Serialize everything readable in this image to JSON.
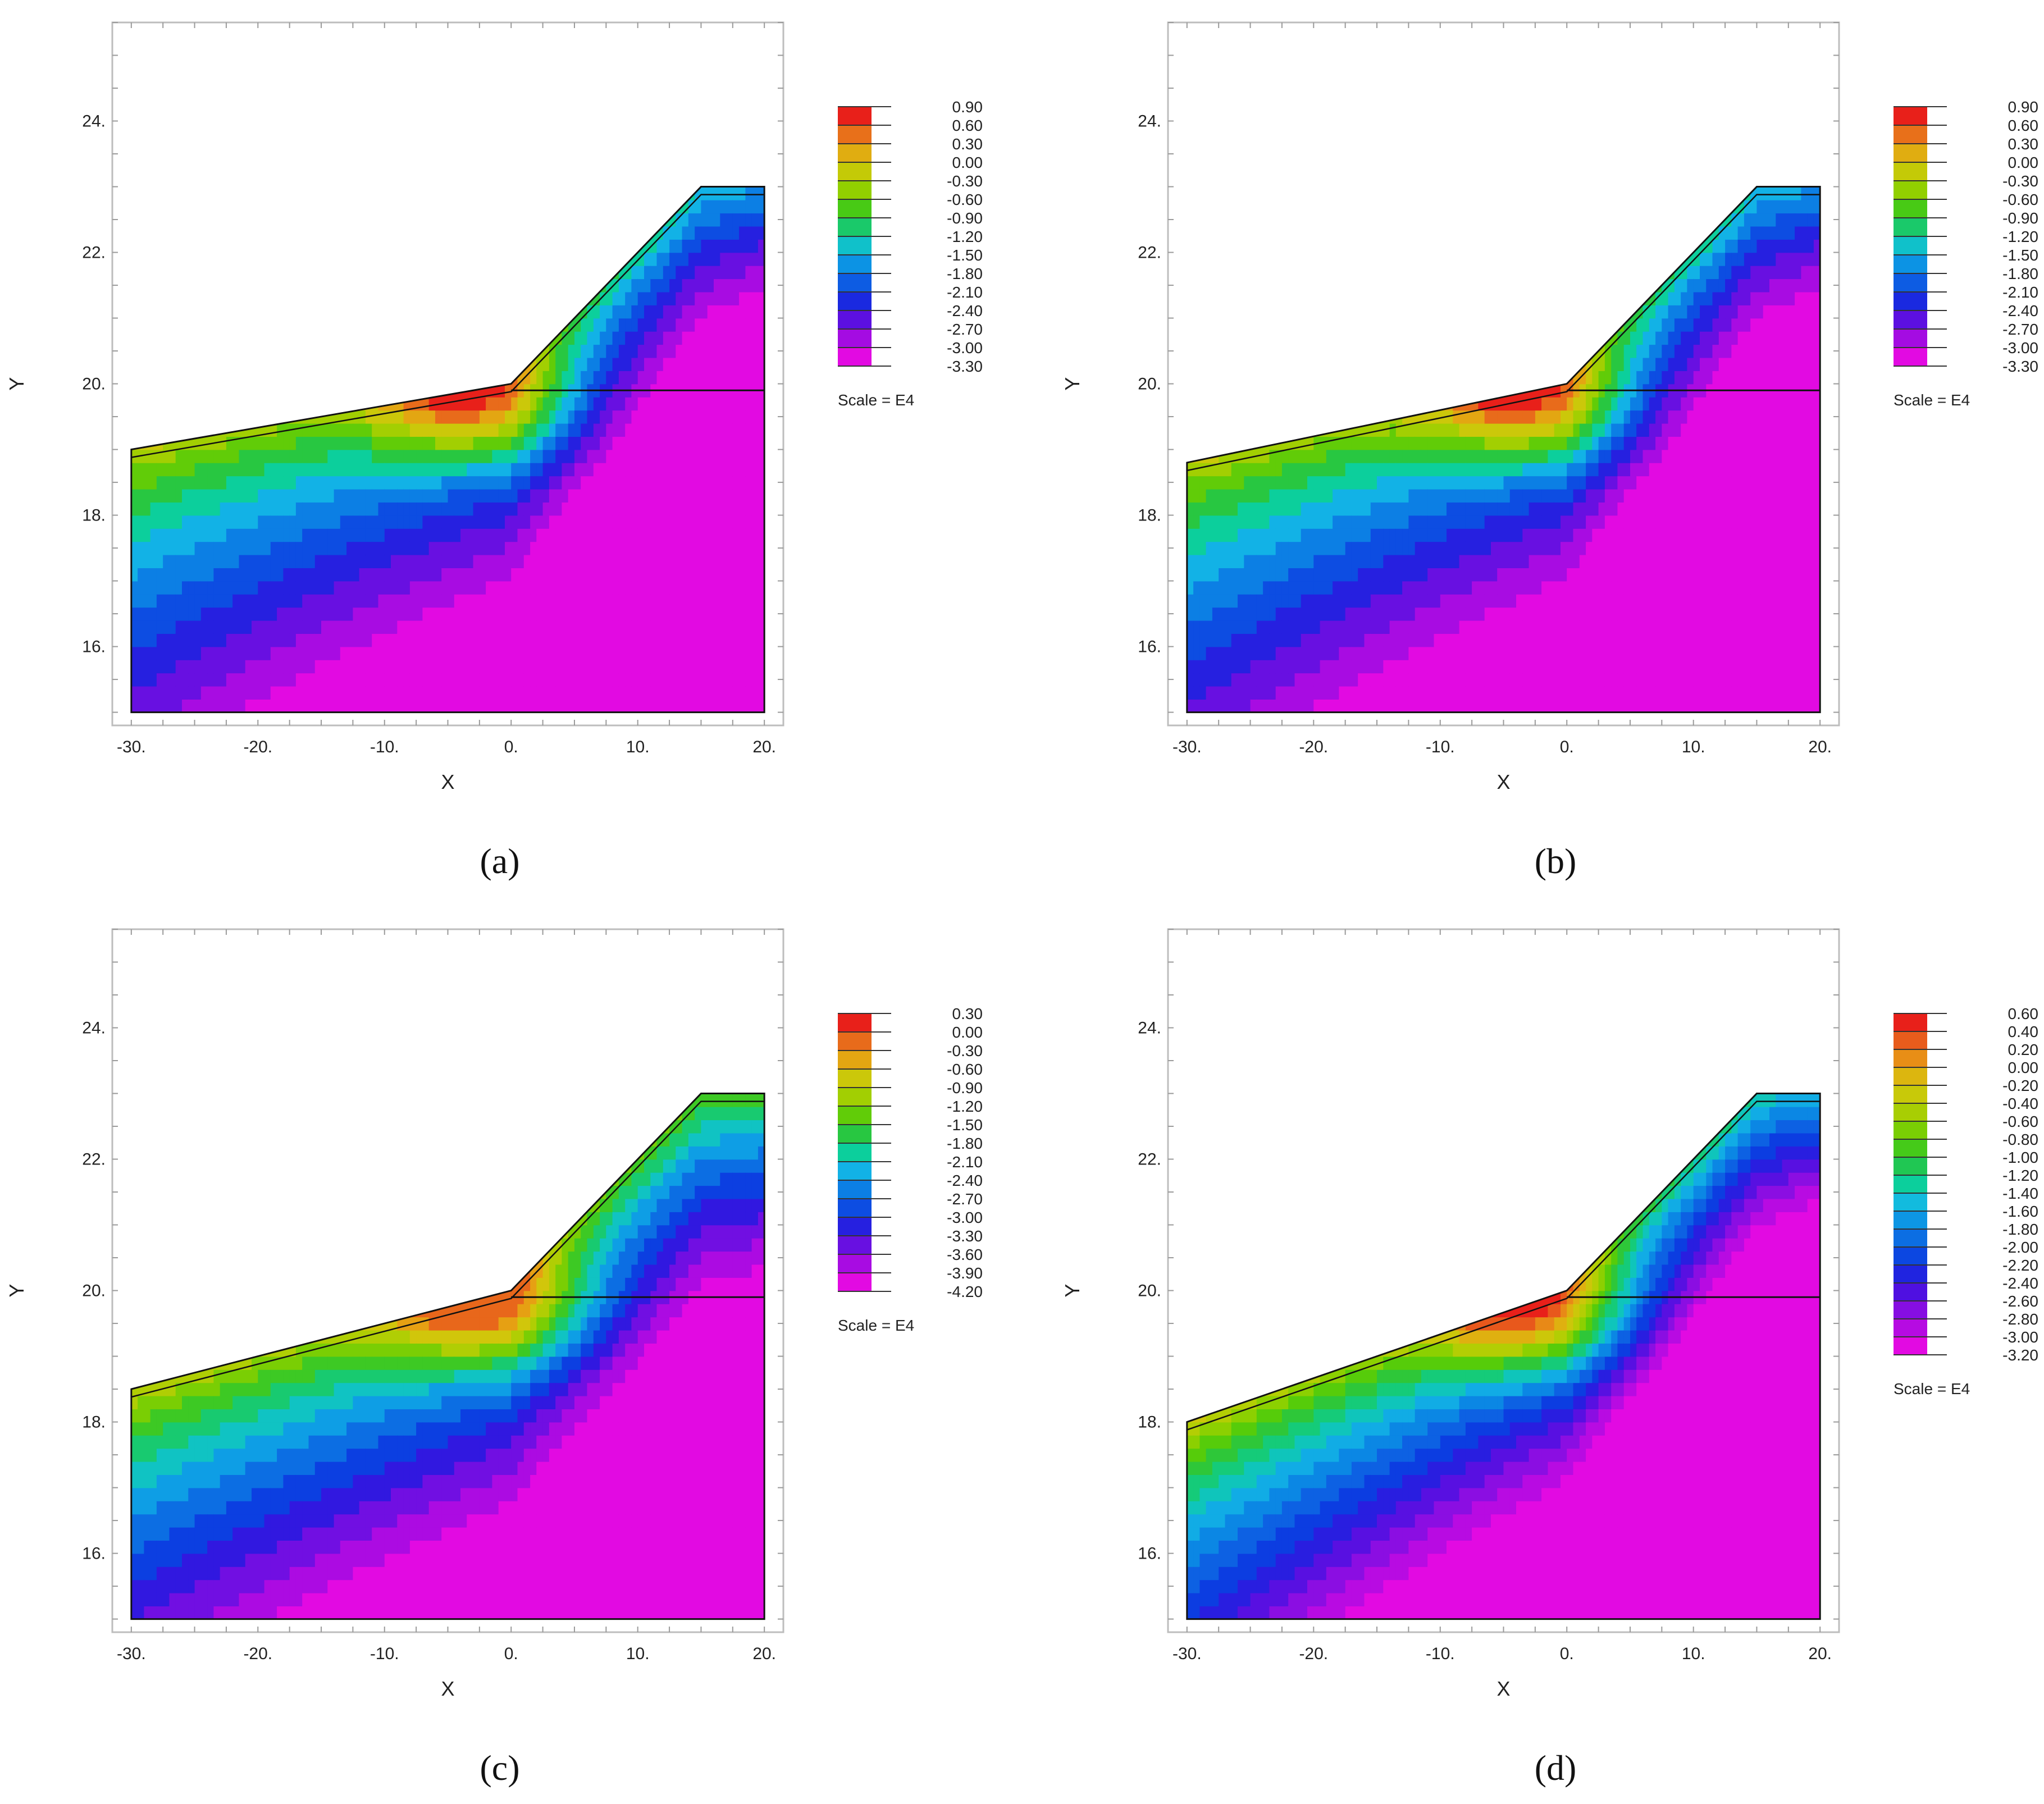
{
  "figure": {
    "panels": [
      {
        "id": "a",
        "caption": "(a)",
        "xlabel": "X",
        "ylabel": "Y",
        "x_ticks": [
          "-30.",
          "-20.",
          "-10.",
          "0.",
          "10.",
          "20."
        ],
        "y_ticks": [
          "16.",
          "18.",
          "20.",
          "22.",
          "24."
        ],
        "legend_values": [
          "0.90",
          "0.60",
          "0.30",
          "0.00",
          "-0.30",
          "-0.60",
          "-0.90",
          "-1.20",
          "-1.50",
          "-1.80",
          "-2.10",
          "-2.40",
          "-2.70",
          "-3.00",
          "-3.30"
        ],
        "scale_label": "Scale = E4"
      },
      {
        "id": "b",
        "caption": "(b)",
        "xlabel": "X",
        "ylabel": "Y",
        "x_ticks": [
          "-30.",
          "-20.",
          "-10.",
          "0.",
          "10.",
          "20."
        ],
        "y_ticks": [
          "16.",
          "18.",
          "20.",
          "22.",
          "24."
        ],
        "legend_values": [
          "0.90",
          "0.60",
          "0.30",
          "0.00",
          "-0.30",
          "-0.60",
          "-0.90",
          "-1.20",
          "-1.50",
          "-1.80",
          "-2.10",
          "-2.40",
          "-2.70",
          "-3.00",
          "-3.30"
        ],
        "scale_label": "Scale = E4"
      },
      {
        "id": "c",
        "caption": "(c)",
        "xlabel": "X",
        "ylabel": "Y",
        "x_ticks": [
          "-30.",
          "-20.",
          "-10.",
          "0.",
          "10.",
          "20."
        ],
        "y_ticks": [
          "16.",
          "18.",
          "20.",
          "22.",
          "24."
        ],
        "legend_values": [
          "0.30",
          "0.00",
          "-0.30",
          "-0.60",
          "-0.90",
          "-1.20",
          "-1.50",
          "-1.80",
          "-2.10",
          "-2.40",
          "-2.70",
          "-3.00",
          "-3.30",
          "-3.60",
          "-3.90",
          "-4.20"
        ],
        "scale_label": "Scale = E4"
      },
      {
        "id": "d",
        "caption": "(d)",
        "xlabel": "X",
        "ylabel": "Y",
        "x_ticks": [
          "-30.",
          "-20.",
          "-10.",
          "0.",
          "10.",
          "20."
        ],
        "y_ticks": [
          "16.",
          "18.",
          "20.",
          "22.",
          "24."
        ],
        "legend_values": [
          "0.60",
          "0.40",
          "0.20",
          "0.00",
          "-0.20",
          "-0.40",
          "-0.60",
          "-0.80",
          "-1.00",
          "-1.20",
          "-1.40",
          "-1.60",
          "-1.80",
          "-2.00",
          "-2.20",
          "-2.40",
          "-2.60",
          "-2.80",
          "-3.00",
          "-3.20"
        ],
        "scale_label": "Scale = E4"
      }
    ]
  },
  "colors": {
    "spectral": [
      "#e8201a",
      "#e8631c",
      "#e89a14",
      "#d6c40d",
      "#bccd05",
      "#8fd000",
      "#4fcb0b",
      "#22c64a",
      "#0ccf9c",
      "#13b8e6",
      "#0b8ce4",
      "#0d5fe3",
      "#0c34e0",
      "#3a11e0",
      "#7a0fe2",
      "#b00be2",
      "#e20ae2"
    ],
    "frame": "#bdbdbd",
    "line": "#111111"
  },
  "chart_data": [
    {
      "type": "heatmap",
      "panel": "a",
      "title": "",
      "xlabel": "X",
      "ylabel": "Y",
      "xlim": [
        -31.5,
        21.5
      ],
      "ylim": [
        14.8,
        25.5
      ],
      "x_ticks": [
        -30,
        -20,
        -10,
        0,
        10,
        20
      ],
      "y_ticks": [
        16,
        18,
        20,
        22,
        24
      ],
      "domain_outline": [
        [
          -30,
          15
        ],
        [
          20,
          15
        ],
        [
          20,
          23
        ],
        [
          15,
          23
        ],
        [
          0,
          20
        ],
        [
          -30,
          19
        ]
      ],
      "inner_line": [
        [
          0,
          19.9
        ],
        [
          20,
          19.9
        ]
      ],
      "contour_levels": [
        0.9,
        0.6,
        0.3,
        0.0,
        -0.3,
        -0.6,
        -0.9,
        -1.2,
        -1.5,
        -1.8,
        -2.1,
        -2.4,
        -2.7,
        -3.0,
        -3.3
      ],
      "value_range": [
        -3.3,
        0.9
      ],
      "scale": "E4",
      "approx_field": {
        "hotspot": [
          -3,
          19.75
        ],
        "slope_strength": 0.15,
        "depth_strength": 0.11,
        "rightward_strength": 0.14
      }
    },
    {
      "type": "heatmap",
      "panel": "b",
      "title": "",
      "xlabel": "X",
      "ylabel": "Y",
      "xlim": [
        -31.5,
        21.5
      ],
      "ylim": [
        14.8,
        25.5
      ],
      "x_ticks": [
        -30,
        -20,
        -10,
        0,
        10,
        20
      ],
      "y_ticks": [
        16,
        18,
        20,
        22,
        24
      ],
      "domain_outline": [
        [
          -30,
          15
        ],
        [
          20,
          15
        ],
        [
          20,
          23
        ],
        [
          15,
          23
        ],
        [
          0,
          20
        ],
        [
          -30,
          18.8
        ]
      ],
      "inner_line": [
        [
          0,
          19.9
        ],
        [
          20,
          19.9
        ]
      ],
      "contour_levels": [
        0.9,
        0.6,
        0.3,
        0.0,
        -0.3,
        -0.6,
        -0.9,
        -1.2,
        -1.5,
        -1.8,
        -2.1,
        -2.4,
        -2.7,
        -3.0,
        -3.3
      ],
      "value_range": [
        -3.3,
        0.9
      ],
      "scale": "E4",
      "approx_field": {
        "hotspot": [
          -3,
          19.75
        ],
        "slope_strength": 0.15,
        "depth_strength": 0.11,
        "rightward_strength": 0.14
      }
    },
    {
      "type": "heatmap",
      "panel": "c",
      "title": "",
      "xlabel": "X",
      "ylabel": "Y",
      "xlim": [
        -31.5,
        21.5
      ],
      "ylim": [
        14.8,
        25.5
      ],
      "x_ticks": [
        -30,
        -20,
        -10,
        0,
        10,
        20
      ],
      "y_ticks": [
        16,
        18,
        20,
        22,
        24
      ],
      "domain_outline": [
        [
          -30,
          15
        ],
        [
          20,
          15
        ],
        [
          20,
          23
        ],
        [
          15,
          23
        ],
        [
          0,
          20
        ],
        [
          -30,
          18.5
        ]
      ],
      "inner_line": [
        [
          0,
          19.9
        ],
        [
          20,
          19.9
        ]
      ],
      "contour_levels": [
        0.3,
        0.0,
        -0.3,
        -0.6,
        -0.9,
        -1.2,
        -1.5,
        -1.8,
        -2.1,
        -2.4,
        -2.7,
        -3.0,
        -3.3,
        -3.6,
        -3.9,
        -4.2
      ],
      "value_range": [
        -4.2,
        0.3
      ],
      "scale": "E4",
      "approx_field": {
        "hotspot": [
          -2,
          19.8
        ],
        "slope_strength": 0.05,
        "depth_strength": 0.12,
        "rightward_strength": 0.1
      }
    },
    {
      "type": "heatmap",
      "panel": "d",
      "title": "",
      "xlabel": "X",
      "ylabel": "Y",
      "xlim": [
        -31.5,
        21.5
      ],
      "ylim": [
        14.8,
        25.5
      ],
      "x_ticks": [
        -30,
        -20,
        -10,
        0,
        10,
        20
      ],
      "y_ticks": [
        16,
        18,
        20,
        22,
        24
      ],
      "domain_outline": [
        [
          -30,
          15
        ],
        [
          20,
          15
        ],
        [
          20,
          23
        ],
        [
          15,
          23
        ],
        [
          0,
          20
        ],
        [
          -30,
          18
        ]
      ],
      "inner_line": [
        [
          0,
          19.9
        ],
        [
          20,
          19.9
        ]
      ],
      "contour_levels": [
        0.6,
        0.4,
        0.2,
        0.0,
        -0.2,
        -0.4,
        -0.6,
        -0.8,
        -1.0,
        -1.2,
        -1.4,
        -1.6,
        -1.8,
        -2.0,
        -2.2,
        -2.4,
        -2.6,
        -2.8,
        -3.0,
        -3.2
      ],
      "value_range": [
        -3.2,
        0.6
      ],
      "scale": "E4",
      "approx_field": {
        "hotspot": [
          -3,
          19.75
        ],
        "slope_strength": 0.14,
        "depth_strength": 0.12,
        "rightward_strength": 0.14
      }
    }
  ]
}
